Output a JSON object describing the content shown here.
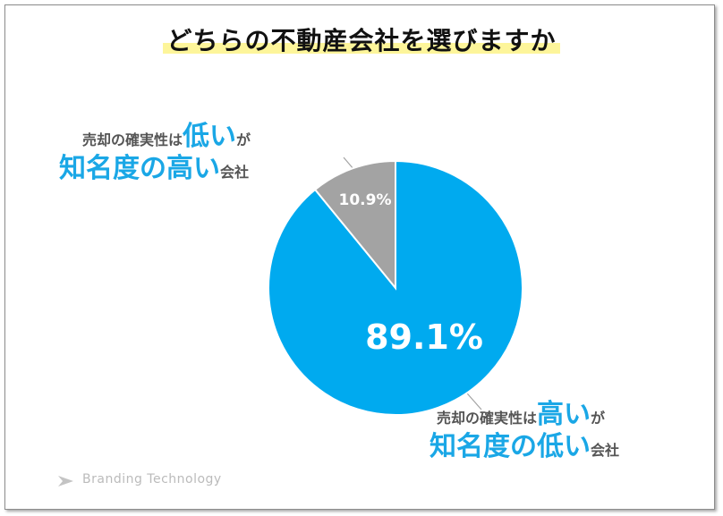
{
  "title": "どちらの不動産会社を選びますか",
  "chart_data": {
    "type": "pie",
    "slices": [
      {
        "value": 89.1,
        "label": "89.1%",
        "color": "#00aaef"
      },
      {
        "value": 10.9,
        "label": "10.9%",
        "color": "#a3a3a3"
      }
    ]
  },
  "callouts": {
    "gray": {
      "line1_pre": "売却の確実性は",
      "line1_big": "低い",
      "line1_post": "が",
      "line2_big": "知名度の高い",
      "line2_post": "会社"
    },
    "blue": {
      "line1_pre": "売却の確実性は",
      "line1_big": "高い",
      "line1_post": "が",
      "line2_big": "知名度の低い",
      "line2_post": "会社"
    }
  },
  "brand": "Branding Technology"
}
